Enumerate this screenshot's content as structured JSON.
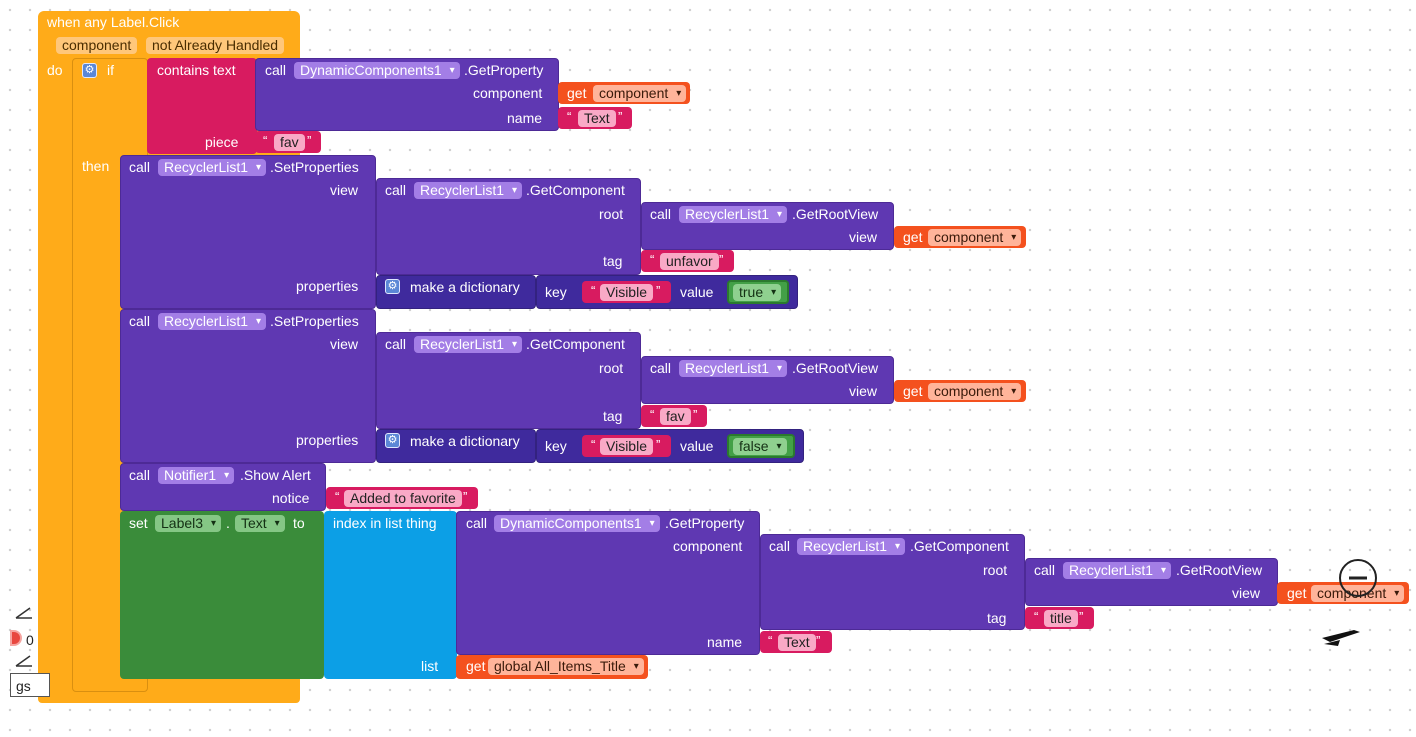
{
  "event": {
    "title": "when any Label.Click",
    "param1": "component",
    "param2": "not Already Handled",
    "do_label": "do"
  },
  "if_block": {
    "if_label": "if",
    "then_label": "then",
    "contains_label": "contains  text",
    "piece_label": "piece",
    "piece_value": "fav",
    "get_prop": {
      "call": "call",
      "component": "DynamicComponents1",
      "method": ".GetProperty",
      "arg_component": "component",
      "arg_name": "name",
      "get": "get",
      "get_var": "component",
      "name_value": "Text"
    }
  },
  "set_props_1": {
    "call": "call",
    "component": "RecyclerList1",
    "method": ".SetProperties",
    "view_label": "view",
    "properties_label": "properties",
    "get_component": {
      "call": "call",
      "component": "RecyclerList1",
      "method": ".GetComponent",
      "root_label": "root",
      "tag_label": "tag",
      "tag_value": "unfavor"
    },
    "get_root": {
      "call": "call",
      "component": "RecyclerList1",
      "method": ".GetRootView",
      "view_label": "view",
      "get": "get",
      "get_var": "component"
    },
    "dict": {
      "label": "make a dictionary",
      "key_label": "key",
      "key_value": "Visible",
      "value_label": "value",
      "value": "true"
    }
  },
  "set_props_2": {
    "call": "call",
    "component": "RecyclerList1",
    "method": ".SetProperties",
    "view_label": "view",
    "properties_label": "properties",
    "get_component": {
      "call": "call",
      "component": "RecyclerList1",
      "method": ".GetComponent",
      "root_label": "root",
      "tag_label": "tag",
      "tag_value": "fav"
    },
    "get_root": {
      "call": "call",
      "component": "RecyclerList1",
      "method": ".GetRootView",
      "view_label": "view",
      "get": "get",
      "get_var": "component"
    },
    "dict": {
      "label": "make a dictionary",
      "key_label": "key",
      "key_value": "Visible",
      "value_label": "value",
      "value": "false"
    }
  },
  "notifier": {
    "call": "call",
    "component": "Notifier1",
    "method": ".Show Alert",
    "notice_label": "notice",
    "notice_value": "Added to favorite"
  },
  "set_label": {
    "set": "set",
    "component": "Label3",
    "dot": ".",
    "property": "Text",
    "to": "to",
    "index_label": "index in list  thing",
    "list_label": "list",
    "list_get": "get",
    "list_var": "global All_Items_Title",
    "get_prop": {
      "call": "call",
      "component": "DynamicComponents1",
      "method": ".GetProperty",
      "component_label": "component",
      "name_label": "name",
      "name_value": "Text"
    },
    "get_component": {
      "call": "call",
      "component": "RecyclerList1",
      "method": ".GetComponent",
      "root_label": "root",
      "tag_label": "tag",
      "tag_value": "title"
    },
    "get_root": {
      "call": "call",
      "component": "RecyclerList1",
      "method": ".GetRootView",
      "view_label": "view",
      "get": "get",
      "get_var": "component"
    }
  },
  "workspace": {
    "warning_count": "0",
    "tab_fragment": "gs"
  },
  "colors": {
    "event": "#ffab19",
    "text": "#d81b60",
    "procedure": "#5f38b2",
    "variable": "#f4511e",
    "list": "#0c9fe6",
    "component_set": "#3a8c3a",
    "logic": "#43a047"
  }
}
